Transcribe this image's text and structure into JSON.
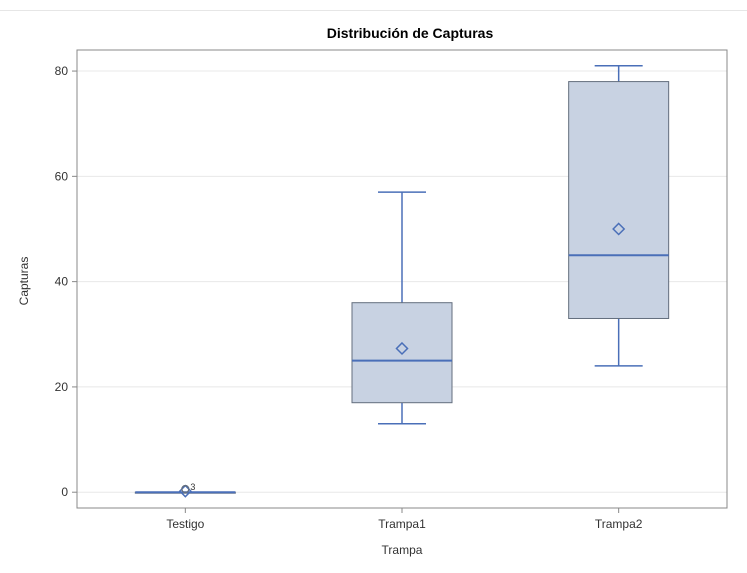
{
  "chart_data": {
    "type": "box",
    "title": "Distribución de Capturas",
    "xlabel": "Trampa",
    "ylabel": "Capturas",
    "ylim": [
      -3,
      84
    ],
    "yticks": [
      0,
      20,
      40,
      60,
      80
    ],
    "grid": true,
    "legend": "none",
    "colors": {
      "box_fill": "#c8d2e2",
      "box_edge": "#636e7d",
      "stat_line": "#4a6fb8",
      "grid": "#e8e8e8",
      "frame": "#888888"
    },
    "categories": [
      "Testigo",
      "Trampa1",
      "Trampa2"
    ],
    "series": [
      {
        "category": "Testigo",
        "min": 0,
        "q1": 0,
        "median": 0,
        "q3": 0,
        "max": 0,
        "mean": 0.2,
        "outliers": [
          {
            "value": 0.6,
            "label": "3"
          }
        ]
      },
      {
        "category": "Trampa1",
        "min": 13,
        "q1": 17,
        "median": 25,
        "q3": 36,
        "max": 57,
        "mean": 27.3,
        "outliers": []
      },
      {
        "category": "Trampa2",
        "min": 24,
        "q1": 33,
        "median": 45,
        "q3": 78,
        "max": 81,
        "mean": 50,
        "outliers": []
      }
    ]
  }
}
